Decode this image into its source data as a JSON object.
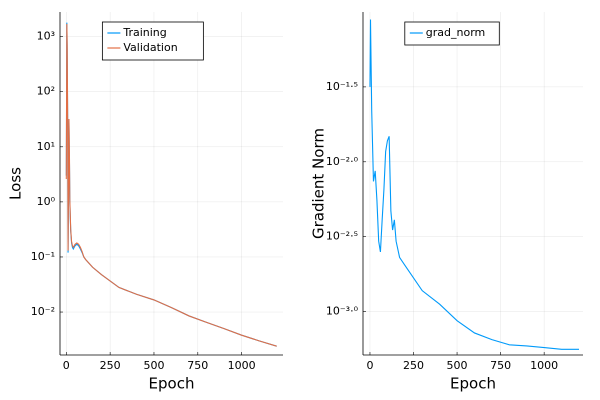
{
  "chart_data": [
    {
      "type": "line",
      "xlabel": "Epoch",
      "ylabel": "Loss",
      "yscale": "log",
      "grid": true,
      "legend": "top",
      "x": [
        0,
        3,
        5,
        8,
        10,
        13,
        15,
        18,
        20,
        25,
        30,
        35,
        40,
        45,
        50,
        60,
        70,
        80,
        90,
        100,
        110,
        150,
        200,
        300,
        400,
        500,
        600,
        700,
        800,
        900,
        1000,
        1100,
        1200
      ],
      "series": [
        {
          "name": "Training",
          "color": "#009afa",
          "values": [
            3,
            1800,
            600,
            20,
            0.12,
            2,
            30,
            5,
            1,
            0.3,
            0.18,
            0.15,
            0.14,
            0.15,
            0.16,
            0.17,
            0.16,
            0.14,
            0.12,
            0.1,
            0.09,
            0.065,
            0.048,
            0.028,
            0.021,
            0.0166,
            0.012,
            0.0085,
            0.0065,
            0.005,
            0.0038,
            0.003,
            0.0024
          ]
        },
        {
          "name": "Validation",
          "color": "#e26f46",
          "values": [
            2.6,
            1700,
            700,
            25,
            0.13,
            2.5,
            32,
            6,
            1.1,
            0.32,
            0.19,
            0.16,
            0.15,
            0.16,
            0.17,
            0.18,
            0.17,
            0.15,
            0.125,
            0.1,
            0.09,
            0.065,
            0.048,
            0.028,
            0.021,
            0.0166,
            0.012,
            0.0085,
            0.0065,
            0.005,
            0.0038,
            0.003,
            0.0024
          ]
        }
      ],
      "xlim": [
        -36,
        1236
      ],
      "xticks": [
        0,
        250,
        500,
        750,
        1000
      ],
      "ylim": [
        0.00166,
        2800
      ],
      "yticks": [
        {
          "value": 0.01,
          "label": "10⁻²"
        },
        {
          "value": 0.1,
          "label": "10⁻¹"
        },
        {
          "value": 1,
          "label": "10⁰"
        },
        {
          "value": 10,
          "label": "10¹"
        },
        {
          "value": 100,
          "label": "10²"
        },
        {
          "value": 1000,
          "label": "10³"
        }
      ]
    },
    {
      "type": "line",
      "xlabel": "Epoch",
      "ylabel": "Gradient Norm",
      "yscale": "log",
      "grid": true,
      "legend": "top",
      "x": [
        0,
        3,
        10,
        20,
        30,
        40,
        50,
        60,
        70,
        80,
        90,
        100,
        110,
        120,
        130,
        140,
        150,
        170,
        200,
        300,
        400,
        500,
        600,
        700,
        800,
        900,
        1000,
        1100,
        1200
      ],
      "series": [
        {
          "name": "grad_norm",
          "color": "#009afa",
          "values": [
            0.0316,
            0.0891,
            0.0219,
            0.0074,
            0.0087,
            0.0055,
            0.00295,
            0.0025,
            0.0041,
            0.0065,
            0.0117,
            0.0138,
            0.0148,
            0.0047,
            0.0035,
            0.0041,
            0.00295,
            0.0023,
            0.00204,
            0.00138,
            0.00112,
            0.00087,
            0.00072,
            0.00065,
            0.0006,
            0.00059,
            0.000575,
            0.00056,
            0.00056
          ]
        }
      ],
      "xlim": [
        -40,
        1223
      ],
      "xticks": [
        0,
        250,
        500,
        750,
        1000
      ],
      "ylim": [
        0.000513,
        0.1
      ],
      "yticks": [
        {
          "value": 0.001,
          "label": "10⁻³·⁰"
        },
        {
          "value": 0.0031623,
          "label": "10⁻²·⁵"
        },
        {
          "value": 0.01,
          "label": "10⁻²·⁰"
        },
        {
          "value": 0.031623,
          "label": "10⁻¹·⁵"
        }
      ]
    }
  ]
}
